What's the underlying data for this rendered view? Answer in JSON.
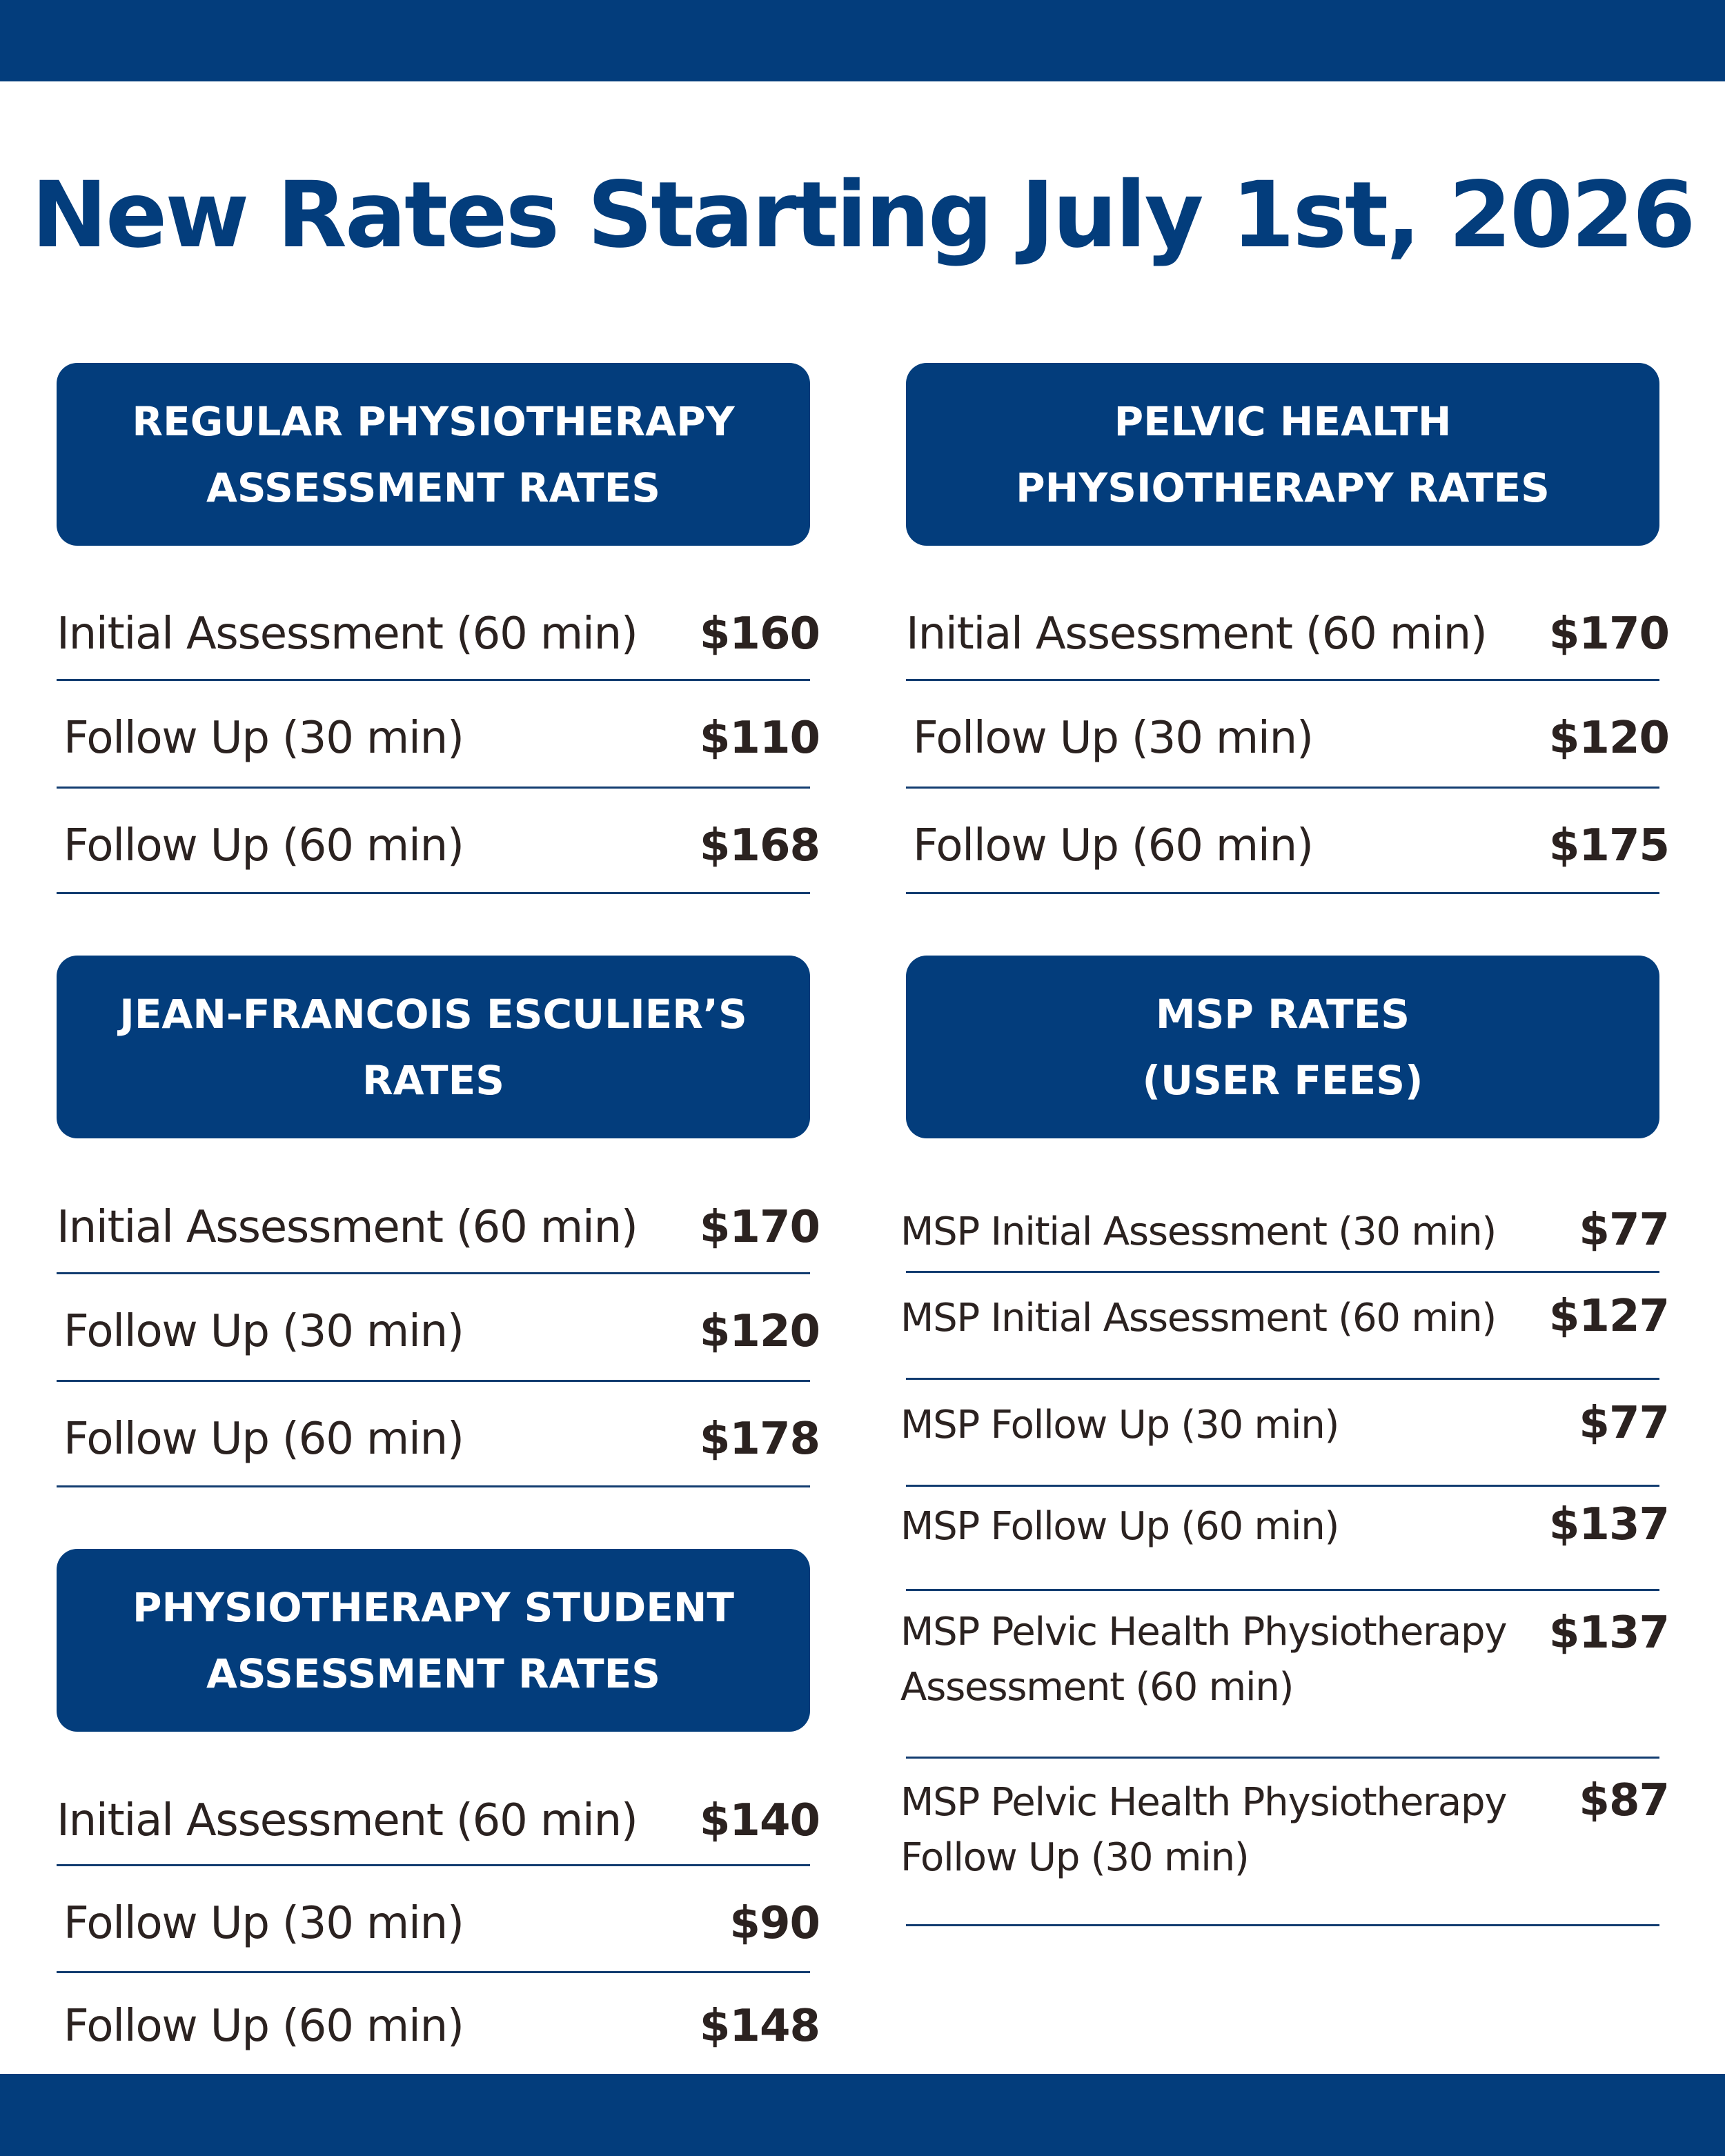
{
  "title": "New Rates Starting July 1st, 2026",
  "sections": {
    "regular": {
      "title_line1": "REGULAR PHYSIOTHERAPY",
      "title_line2": "ASSESSMENT RATES",
      "rows": [
        {
          "label": "Initial Assessment (60 min)",
          "price": "$160"
        },
        {
          "label": "Follow Up (30 min)",
          "price": "$110"
        },
        {
          "label": "Follow Up (60 min)",
          "price": "$168"
        }
      ]
    },
    "pelvic": {
      "title_line1": "PELVIC HEALTH",
      "title_line2": "PHYSIOTHERAPY RATES",
      "rows": [
        {
          "label": "Initial Assessment (60 min)",
          "price": "$170"
        },
        {
          "label": "Follow Up (30 min)",
          "price": "$120"
        },
        {
          "label": "Follow Up (60 min)",
          "price": "$175"
        }
      ]
    },
    "jf": {
      "title_line1": "JEAN-FRANCOIS ESCULIER’S",
      "title_line2": "RATES",
      "rows": [
        {
          "label": "Initial Assessment (60 min)",
          "price": "$170"
        },
        {
          "label": "Follow Up (30 min)",
          "price": "$120"
        },
        {
          "label": "Follow Up (60 min)",
          "price": "$178"
        }
      ]
    },
    "msp": {
      "title_line1": "MSP RATES",
      "title_line2": "(USER FEES)",
      "rows": [
        {
          "label": "MSP Initial Assessment (30 min)",
          "price": "$77"
        },
        {
          "label": "MSP Initial Assessment (60 min)",
          "price": "$127"
        },
        {
          "label": "MSP Follow Up (30 min)",
          "price": "$77"
        },
        {
          "label": "MSP Follow Up (60 min)",
          "price": "$137"
        },
        {
          "label_line1": "MSP Pelvic Health Physiotherapy",
          "label_line2": "Assessment (60 min)",
          "price": "$137"
        },
        {
          "label_line1": "MSP Pelvic Health Physiotherapy",
          "label_line2": "Follow Up (30 min)",
          "price": "$87"
        }
      ]
    },
    "student": {
      "title_line1": "PHYSIOTHERAPY STUDENT",
      "title_line2": "ASSESSMENT RATES",
      "rows": [
        {
          "label": "Initial Assessment (60 min)",
          "price": "$140"
        },
        {
          "label": "Follow Up (30 min)",
          "price": "$90"
        },
        {
          "label": "Follow Up (60 min)",
          "price": "$148"
        }
      ]
    }
  }
}
